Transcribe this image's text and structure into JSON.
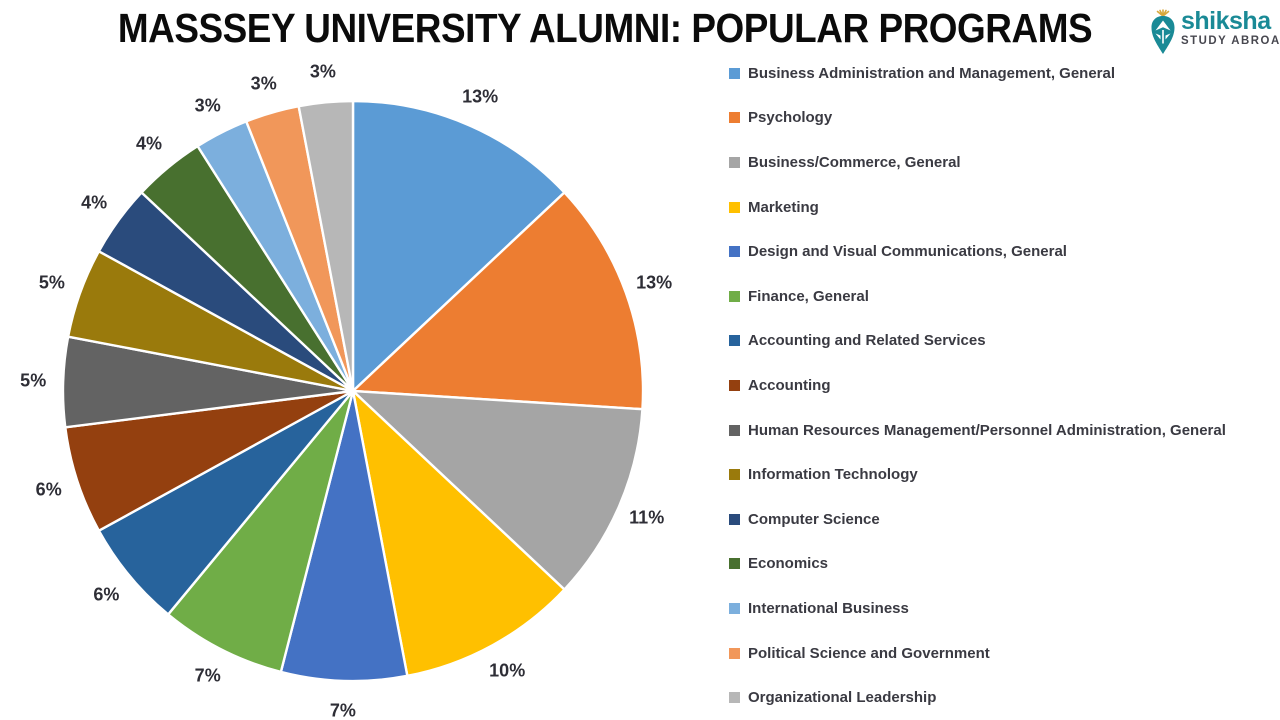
{
  "title": "MASSSEY UNIVERSITY ALUMNI: POPULAR PROGRAMS",
  "logo": {
    "brand": "shiksha",
    "tagline": "STUDY ABROAD",
    "brand_color": "#1a8a96",
    "tagline_color": "#47474f",
    "icon_accent_color": "#d9a83c"
  },
  "chart_data": {
    "type": "pie",
    "title": "MASSSEY UNIVERSITY ALUMNI: POPULAR PROGRAMS",
    "direction": "clockwise",
    "start_angle_deg": 0,
    "legend_position": "right",
    "data_labels": "percent, outside end",
    "slice_border_color": "#ffffff",
    "slices": [
      {
        "label": "Business Administration and Management, General",
        "value": 13,
        "display": "13%",
        "color": "#5b9bd5"
      },
      {
        "label": "Psychology",
        "value": 13,
        "display": "13%",
        "color": "#ed7d31"
      },
      {
        "label": "Business/Commerce, General",
        "value": 11,
        "display": "11%",
        "color": "#a5a5a5"
      },
      {
        "label": "Marketing",
        "value": 10,
        "display": "10%",
        "color": "#ffc000"
      },
      {
        "label": "Design and Visual Communications, General",
        "value": 7,
        "display": "7%",
        "color": "#4472c4"
      },
      {
        "label": "Finance, General",
        "value": 7,
        "display": "7%",
        "color": "#70ad47"
      },
      {
        "label": "Accounting and Related Services",
        "value": 6,
        "display": "6%",
        "color": "#27639c"
      },
      {
        "label": "Accounting",
        "value": 6,
        "display": "6%",
        "color": "#94400f"
      },
      {
        "label": "Human Resources Management/Personnel Administration, General",
        "value": 5,
        "display": "5%",
        "color": "#636363"
      },
      {
        "label": "Information Technology",
        "value": 5,
        "display": "5%",
        "color": "#9a7a0c"
      },
      {
        "label": "Computer Science",
        "value": 4,
        "display": "4%",
        "color": "#2a4b7c"
      },
      {
        "label": "Economics",
        "value": 4,
        "display": "4%",
        "color": "#48702f"
      },
      {
        "label": "International Business",
        "value": 3,
        "display": "3%",
        "color": "#7cafdd"
      },
      {
        "label": "Political Science and Government",
        "value": 3,
        "display": "3%",
        "color": "#f1975a"
      },
      {
        "label": "Organizational Leadership",
        "value": 3,
        "display": "3%",
        "color": "#b7b7b7"
      }
    ]
  }
}
